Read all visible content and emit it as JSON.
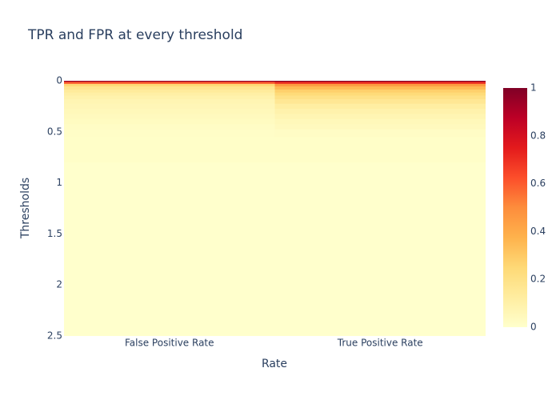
{
  "chart_data": {
    "type": "heatmap",
    "title": "TPR and FPR at every threshold",
    "xlabel": "Rate",
    "ylabel": "Thresholds",
    "categories": [
      "False Positive Rate",
      "True Positive Rate"
    ],
    "y": [
      0,
      0.02,
      0.04,
      0.07,
      0.1,
      0.13,
      0.16,
      0.2,
      0.25,
      0.3,
      0.35,
      0.4,
      0.45,
      0.5,
      0.6,
      1,
      1.5,
      2,
      2.5
    ],
    "values": [
      [
        0.95,
        0.6,
        0.25,
        0.18,
        0.14,
        0.11,
        0.09,
        0.07,
        0.06,
        0.05,
        0.04,
        0.03,
        0.02,
        0.015,
        0.01,
        0,
        0,
        0,
        0
      ],
      [
        0.98,
        0.7,
        0.45,
        0.35,
        0.28,
        0.24,
        0.2,
        0.16,
        0.12,
        0.09,
        0.07,
        0.05,
        0.04,
        0.02,
        0.01,
        0,
        0,
        0,
        0
      ]
    ],
    "ylim": [
      2.5,
      0
    ],
    "yticks": [
      0,
      0.5,
      1,
      1.5,
      2,
      2.5
    ],
    "zlim": [
      0,
      1
    ],
    "zticks": [
      0,
      0.2,
      0.4,
      0.6,
      0.8,
      1
    ],
    "colorscale": [
      [
        0,
        "#ffffcc"
      ],
      [
        0.125,
        "#ffeda0"
      ],
      [
        0.25,
        "#fed976"
      ],
      [
        0.375,
        "#feb24c"
      ],
      [
        0.5,
        "#fd8d3c"
      ],
      [
        0.625,
        "#fc4e2a"
      ],
      [
        0.75,
        "#e31a1c"
      ],
      [
        0.875,
        "#bd0026"
      ],
      [
        1,
        "#800026"
      ]
    ]
  }
}
